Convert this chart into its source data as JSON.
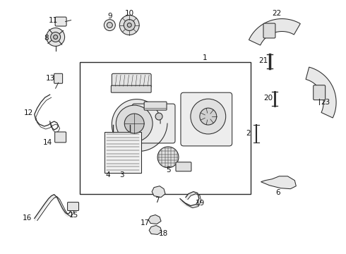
{
  "bg_color": "#ffffff",
  "line_color": "#2a2a2a",
  "label_color": "#111111",
  "label_fontsize": 7.5,
  "fig_width": 4.9,
  "fig_height": 3.6,
  "dpi": 100
}
